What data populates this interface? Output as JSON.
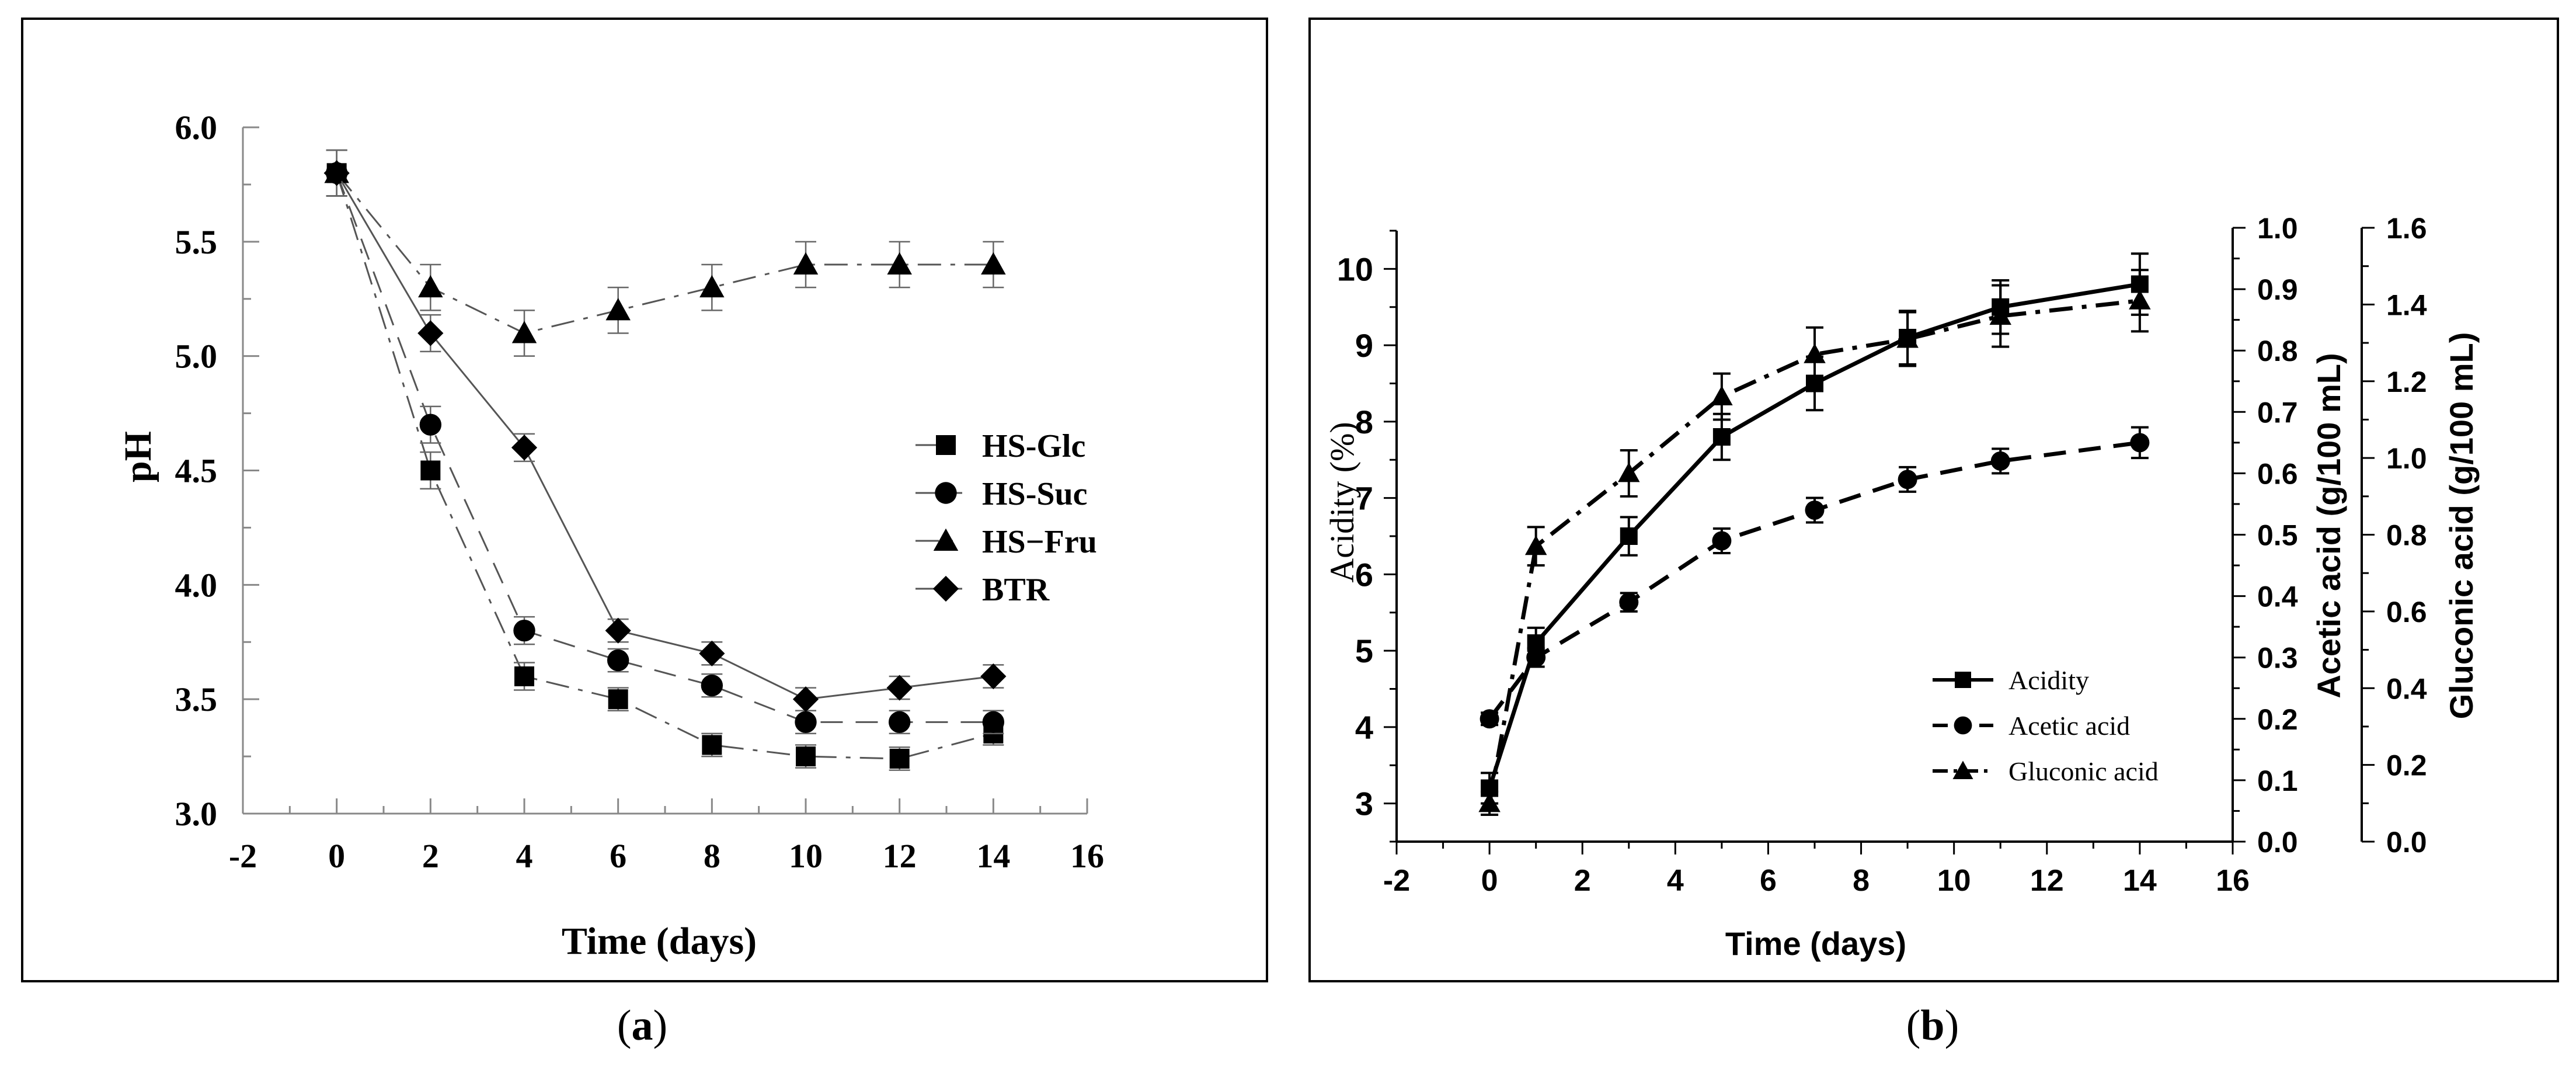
{
  "panels": [
    {
      "caption": "(a)",
      "caption_letter": "a",
      "chart_data": {
        "type": "line",
        "title": "",
        "xlabel": "Time (days)",
        "ylabel": "pH",
        "xlim": [
          -2,
          16
        ],
        "ylim": [
          3.0,
          6.0
        ],
        "xticks": [
          "-2",
          "0",
          "2",
          "4",
          "6",
          "8",
          "10",
          "12",
          "14",
          "16"
        ],
        "yticks": [
          "3.0",
          "3.5",
          "4.0",
          "4.5",
          "5.0",
          "5.5",
          "6.0"
        ],
        "legend_position": "center-right",
        "grid": false,
        "series": [
          {
            "name": "HS-Glc",
            "marker": "square",
            "linestyle": "dashdot",
            "x": [
              0,
              2,
              4,
              6,
              8,
              10,
              12,
              14
            ],
            "y": [
              5.8,
              4.5,
              3.6,
              3.5,
              3.3,
              3.25,
              3.24,
              3.35
            ],
            "err": [
              0.1,
              0.08,
              0.06,
              0.05,
              0.05,
              0.05,
              0.05,
              0.05
            ]
          },
          {
            "name": "HS-Suc",
            "marker": "circle",
            "linestyle": "dashed",
            "x": [
              0,
              2,
              4,
              6,
              8,
              10,
              12,
              14
            ],
            "y": [
              5.8,
              4.7,
              3.8,
              3.67,
              3.56,
              3.4,
              3.4,
              3.4
            ],
            "err": [
              0.1,
              0.08,
              0.06,
              0.05,
              0.05,
              0.05,
              0.05,
              0.05
            ]
          },
          {
            "name": "HS−Fru",
            "marker": "triangle",
            "linestyle": "dashdot",
            "x": [
              0,
              2,
              4,
              6,
              8,
              10,
              12,
              14
            ],
            "y": [
              5.8,
              5.3,
              5.1,
              5.2,
              5.3,
              5.4,
              5.4,
              5.4
            ],
            "err": [
              0.1,
              0.1,
              0.1,
              0.1,
              0.1,
              0.1,
              0.1,
              0.1
            ]
          },
          {
            "name": "BTR",
            "marker": "diamond",
            "linestyle": "solid",
            "x": [
              0,
              2,
              4,
              6,
              8,
              10,
              12,
              14
            ],
            "y": [
              5.8,
              5.1,
              4.6,
              3.8,
              3.7,
              3.5,
              3.55,
              3.6
            ],
            "err": [
              0.1,
              0.08,
              0.06,
              0.05,
              0.05,
              0.05,
              0.05,
              0.05
            ]
          }
        ]
      }
    },
    {
      "caption": "(b)",
      "caption_letter": "b",
      "chart_data": {
        "type": "line",
        "title": "",
        "xlabel": "Time (days)",
        "ylabel": "Acidity (%)",
        "y2label": "Acetic acid (g/100 mL)",
        "y3label": "Gluconic acid (g/100 mL)",
        "xlim": [
          -2,
          16
        ],
        "ylim": [
          2.5,
          10.5
        ],
        "y2lim": [
          0.0,
          1.0
        ],
        "y3lim": [
          0.0,
          1.6
        ],
        "xticks": [
          "-2",
          "0",
          "2",
          "4",
          "6",
          "8",
          "10",
          "12",
          "14",
          "16"
        ],
        "yticks": [
          "3",
          "4",
          "5",
          "6",
          "7",
          "8",
          "9",
          "10"
        ],
        "y2ticks": [
          "0.0",
          "0.1",
          "0.2",
          "0.3",
          "0.4",
          "0.5",
          "0.6",
          "0.7",
          "0.8",
          "0.9",
          "1.0"
        ],
        "y3ticks": [
          "0.0",
          "0.2",
          "0.4",
          "0.6",
          "0.8",
          "1.0",
          "1.2",
          "1.4",
          "1.6"
        ],
        "legend_position": "bottom-right",
        "grid": false,
        "series": [
          {
            "name": "Acidity",
            "marker": "square",
            "linestyle": "solid",
            "axis": "left",
            "x": [
              0,
              1,
              3,
              5,
              7,
              9,
              11,
              14
            ],
            "y": [
              3.2,
              5.1,
              6.5,
              7.8,
              8.5,
              9.1,
              9.5,
              9.8
            ],
            "err": [
              0.2,
              0.2,
              0.25,
              0.3,
              0.35,
              0.35,
              0.35,
              0.4
            ]
          },
          {
            "name": "Acetic acid",
            "marker": "circle",
            "linestyle": "dashed",
            "axis": "right1",
            "x": [
              0,
              1,
              3,
              5,
              7,
              9,
              11,
              14
            ],
            "y": [
              0.2,
              0.3,
              0.39,
              0.49,
              0.54,
              0.59,
              0.62,
              0.65
            ],
            "err": [
              0.01,
              0.015,
              0.015,
              0.02,
              0.02,
              0.02,
              0.02,
              0.025
            ]
          },
          {
            "name": "Gluconic acid",
            "marker": "triangle",
            "linestyle": "dashdot",
            "axis": "right2",
            "x": [
              0,
              1,
              3,
              5,
              7,
              9,
              11,
              14
            ],
            "y": [
              0.1,
              0.77,
              0.96,
              1.16,
              1.27,
              1.31,
              1.37,
              1.41
            ],
            "err": [
              0.03,
              0.05,
              0.06,
              0.06,
              0.07,
              0.07,
              0.08,
              0.08
            ]
          }
        ]
      }
    }
  ]
}
